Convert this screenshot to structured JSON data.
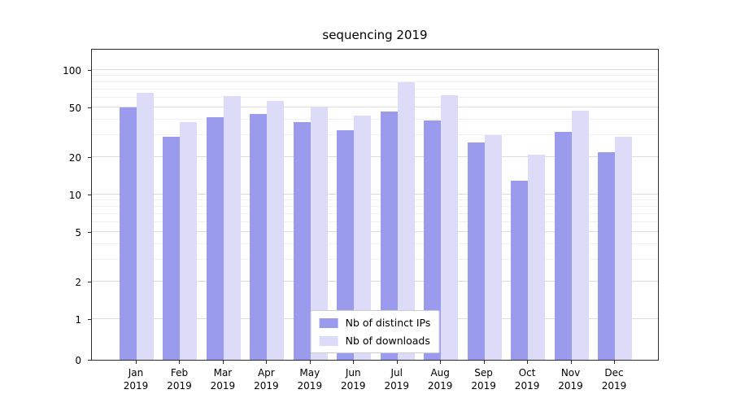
{
  "chart_data": {
    "type": "bar",
    "title": "sequencing 2019",
    "categories": [
      "Jan 2019",
      "Feb 2019",
      "Mar 2019",
      "Apr 2019",
      "May 2019",
      "Jun 2019",
      "Jul 2019",
      "Aug 2019",
      "Sep 2019",
      "Oct 2019",
      "Nov 2019",
      "Dec 2019"
    ],
    "x_tick_months": [
      "Jan",
      "Feb",
      "Mar",
      "Apr",
      "May",
      "Jun",
      "Jul",
      "Aug",
      "Sep",
      "Oct",
      "Nov",
      "Dec"
    ],
    "x_tick_year": "2019",
    "series": [
      {
        "name": "Nb of distinct IPs",
        "color": "#9b9bee",
        "values": [
          50,
          29,
          42,
          44,
          38,
          33,
          46,
          39,
          26,
          13,
          32,
          22
        ]
      },
      {
        "name": "Nb of downloads",
        "color": "#dcdcf8",
        "values": [
          65,
          38,
          62,
          56,
          50,
          43,
          80,
          63,
          30,
          21,
          47,
          29
        ]
      }
    ],
    "y_ticks": [
      0,
      1,
      2,
      5,
      10,
      20,
      50,
      100
    ],
    "y_minor_ticks": [
      3,
      4,
      6,
      7,
      8,
      9,
      30,
      40,
      60,
      70,
      80,
      90
    ],
    "y_scale": "symlog",
    "ylim": [
      0,
      150
    ],
    "xlabel": "",
    "ylabel": "",
    "grid": true,
    "legend_position": "lower center"
  }
}
